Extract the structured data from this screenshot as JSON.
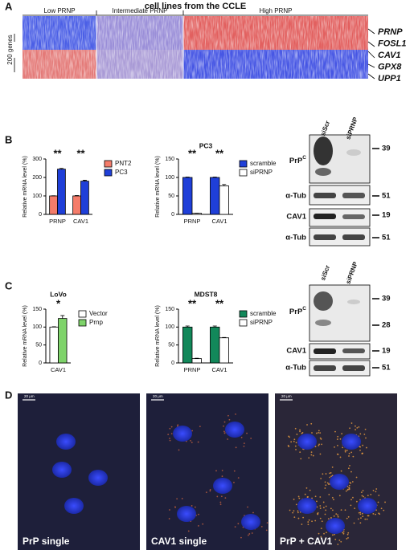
{
  "panel_letters": [
    "A",
    "B",
    "C",
    "D"
  ],
  "heatmap": {
    "title": "cell lines from the CCLE",
    "groups": [
      "Low PRNP",
      "Intermediate PRNP",
      "High PRNP"
    ],
    "row_label": "200 genes",
    "genes": [
      {
        "name": "PRNP",
        "color": "#e8141c"
      },
      {
        "name": "FOSL1",
        "color": "#111111"
      },
      {
        "name": "CAV1",
        "color": "#e8141c"
      },
      {
        "name": "GPX8",
        "color": "#111111"
      },
      {
        "name": "UPP1",
        "color": "#111111"
      }
    ]
  },
  "chart_data": [
    {
      "type": "bar",
      "ylabel": "Relative mRNA level (%)",
      "categories": [
        "PRNP",
        "CAV1"
      ],
      "series": [
        {
          "name": "PNT2",
          "color": "#f47c6a",
          "values": [
            100,
            100
          ],
          "errors": [
            1,
            2
          ]
        },
        {
          "name": "PC3",
          "color": "#1f3fd8",
          "values": [
            245,
            180
          ],
          "errors": [
            4,
            5
          ]
        }
      ],
      "annotations": [
        "**",
        "**"
      ],
      "ylim": [
        0,
        300
      ],
      "yticks": [
        0,
        100,
        200,
        300
      ]
    },
    {
      "type": "bar",
      "title": "PC3",
      "ylabel": "Relative mRNA level (%)",
      "categories": [
        "PRNP",
        "CAV1"
      ],
      "series": [
        {
          "name": "scramble",
          "color": "#1f3fd8",
          "values": [
            100,
            100
          ],
          "errors": [
            1,
            1
          ]
        },
        {
          "name": "siPRNP",
          "color": "#ffffff",
          "values": [
            3,
            77
          ],
          "errors": [
            0.5,
            4
          ]
        }
      ],
      "annotations": [
        "**",
        "**"
      ],
      "ylim": [
        0,
        150
      ],
      "yticks": [
        0,
        50,
        100,
        150
      ]
    },
    {
      "type": "bar",
      "title": "LoVo",
      "ylabel": "Relative mRNA level (%)",
      "categories": [
        "CAV1"
      ],
      "series": [
        {
          "name": "Vector",
          "color": "#ffffff",
          "values": [
            100
          ],
          "errors": [
            1
          ]
        },
        {
          "name": "Prnp",
          "color": "#7ed36a",
          "values": [
            124
          ],
          "errors": [
            8
          ]
        }
      ],
      "annotations": [
        "*"
      ],
      "ylim": [
        0,
        150
      ],
      "yticks": [
        0,
        50,
        100,
        150
      ]
    },
    {
      "type": "bar",
      "title": "MDST8",
      "ylabel": "Relative mRNA level (%)",
      "categories": [
        "PRNP",
        "CAV1"
      ],
      "series": [
        {
          "name": "scramble",
          "color": "#12885a",
          "values": [
            100,
            100
          ],
          "errors": [
            3,
            3
          ]
        },
        {
          "name": "siPRNP",
          "color": "#ffffff",
          "values": [
            12,
            70
          ],
          "errors": [
            1,
            1
          ]
        }
      ],
      "annotations": [
        "**",
        "**"
      ],
      "ylim": [
        0,
        150
      ],
      "yticks": [
        0,
        50,
        100,
        150
      ]
    }
  ],
  "blots": [
    {
      "lanes": [
        "siScr",
        "siPRNP"
      ],
      "rows": [
        {
          "label": "PrP",
          "sup": "C",
          "markers": [
            39
          ]
        },
        {
          "label": "α-Tub",
          "markers": [
            51
          ]
        },
        {
          "label": "CAV1",
          "markers": [
            19
          ]
        },
        {
          "label": "α-Tub",
          "markers": [
            51
          ]
        }
      ]
    },
    {
      "lanes": [
        "siScr",
        "siPRNP"
      ],
      "rows": [
        {
          "label": "PrP",
          "sup": "C",
          "markers": [
            39,
            28
          ]
        },
        {
          "label": "CAV1",
          "markers": [
            19
          ]
        },
        {
          "label": "α-Tub",
          "markers": [
            51
          ]
        }
      ]
    }
  ],
  "images": [
    {
      "label": "PrP single",
      "scale": "20 μm"
    },
    {
      "label": "CAV1 single",
      "scale": "20 μm"
    },
    {
      "label": "PrP + CAV1",
      "scale": "20 μm"
    }
  ]
}
